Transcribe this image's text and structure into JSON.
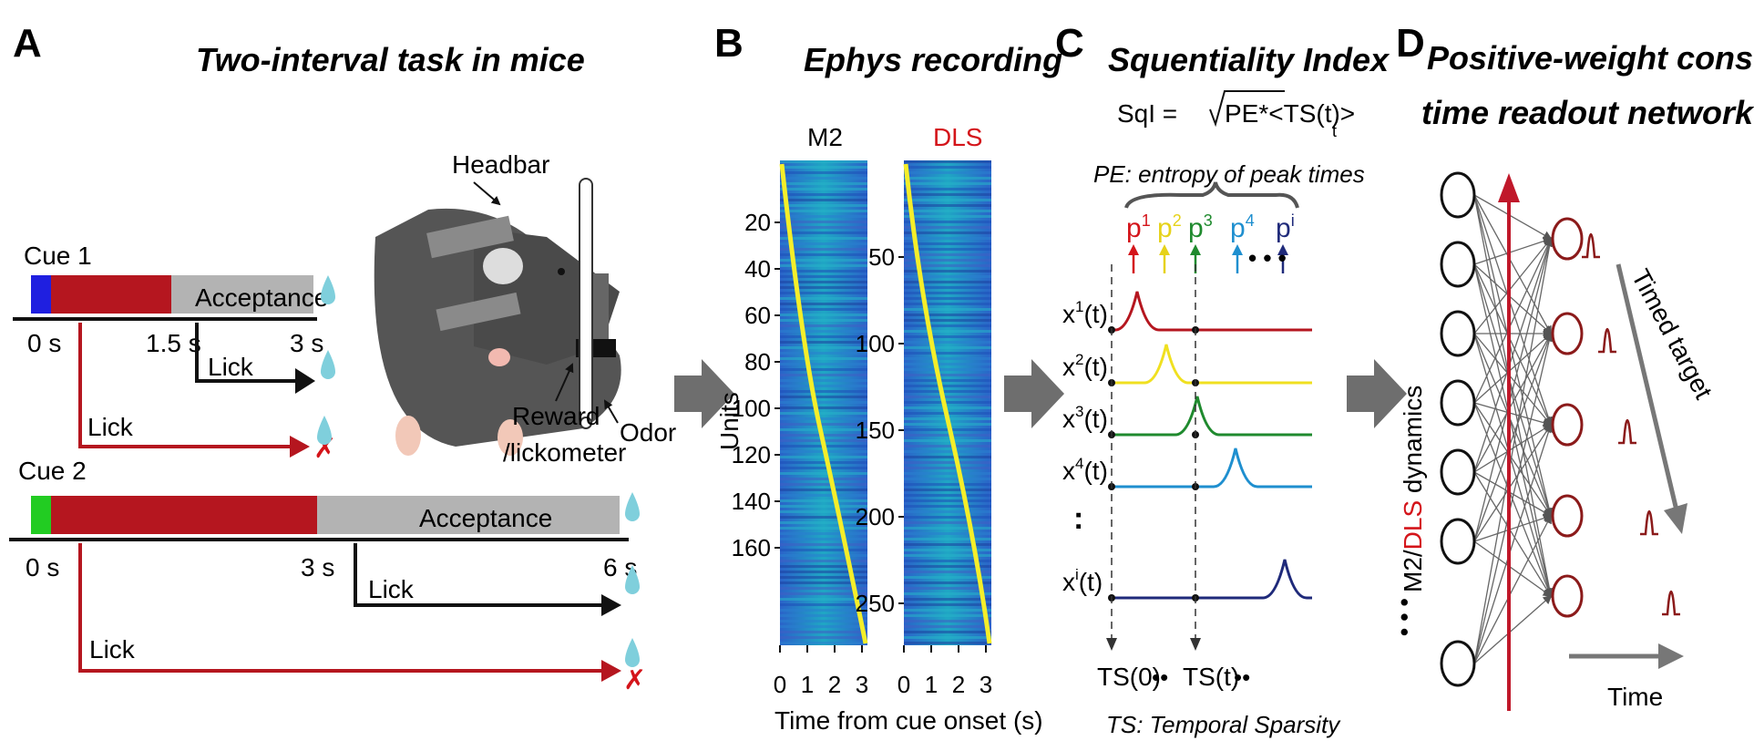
{
  "panel_a": {
    "letter": "A",
    "title": "Two-interval task in mice",
    "cue1": "Cue 1",
    "cue2": "Cue 2",
    "acceptance1": "Acceptance",
    "acceptance2": "Acceptance",
    "t0a": "0 s",
    "t15": "1.5 s",
    "t3a": "3 s",
    "t0b": "0 s",
    "t3b": "3 s",
    "t6": "6 s",
    "lick1": "Lick",
    "lick2": "Lick",
    "lick3": "Lick",
    "lick4": "Lick",
    "headbar": "Headbar",
    "reward": "Reward",
    "lickometer": "/lickometer",
    "odor": "Odor",
    "colors": {
      "cue1": "#1f1fe0",
      "cue2": "#22cc22",
      "delay": "#b5161f",
      "acceptance": "#b3b3b3",
      "drop": "#7fcfdc"
    }
  },
  "panel_b": {
    "letter": "B",
    "title": "Ephys recording",
    "m2": "M2",
    "dls": "DLS",
    "ylabel": "Units",
    "m2_ticks": [
      "20",
      "40",
      "60",
      "80",
      "100",
      "120",
      "140",
      "160"
    ],
    "dls_ticks": [
      "50",
      "100",
      "150",
      "200",
      "250"
    ],
    "x_ticks": [
      "0",
      "1",
      "2",
      "3"
    ],
    "xlabel": "Time from cue  onset (s)",
    "colors": {
      "dls": "#d4141a"
    }
  },
  "panel_c": {
    "letter": "C",
    "title": "Squentiality Index",
    "formula_left": "SqI = ",
    "formula_body": "PE*<TS(t)>",
    "formula_sub": "t",
    "pe_text": "PE: entropy of peak times",
    "peaks": [
      {
        "base": "p",
        "sup": "1",
        "color": "#d4141a"
      },
      {
        "base": "p",
        "sup": "2",
        "color": "#e6d21a"
      },
      {
        "base": "p",
        "sup": "3",
        "color": "#1f8a2e"
      },
      {
        "base": "p",
        "sup": "4",
        "color": "#1f8fcf"
      },
      {
        "base": "p",
        "sup": "i",
        "color": "#1f2a7a"
      }
    ],
    "dots": "• • •",
    "traces": [
      {
        "base": "x",
        "sup": "1",
        "tail": "(t)",
        "color": "#b5161f"
      },
      {
        "base": "x",
        "sup": "2",
        "tail": "(t)",
        "color": "#f0e020"
      },
      {
        "base": "x",
        "sup": "3",
        "tail": "(t)",
        "color": "#1f8a2e"
      },
      {
        "base": "x",
        "sup": "4",
        "tail": "(t)",
        "color": "#1f8fcf"
      },
      {
        "base": "x",
        "sup": "i",
        "tail": "(t)",
        "color": "#1f2a7a"
      }
    ],
    "vdots": ":",
    "ts0": "TS(0)",
    "tst": "TS(t)",
    "ts_dots": "••",
    "ts_caption": "TS: Temporal Sparsity"
  },
  "panel_d": {
    "letter": "D",
    "title_line1": "Positive-weight constrained",
    "title_line2": "time readout network",
    "ylabel_m2": "M2/",
    "ylabel_dls": "DLS",
    "ylabel_dyn": " dynamics",
    "left_dots": "• • •",
    "timed_target": "Timed target",
    "time": "Time",
    "colors": {
      "readout": "#8b1a1a",
      "arrow": "#c0182a",
      "dls": "#d4141a"
    }
  }
}
